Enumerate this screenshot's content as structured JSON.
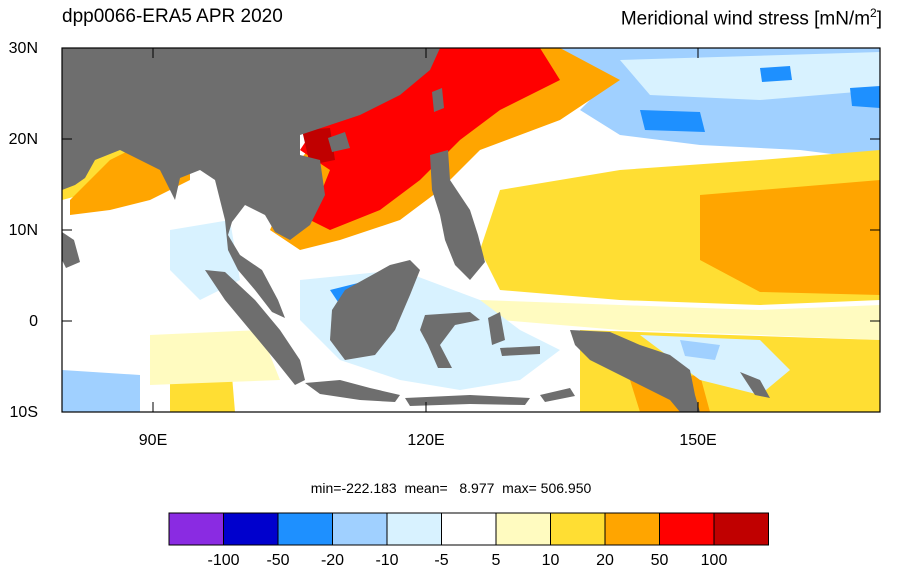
{
  "title_left": "dpp0066-ERA5  APR 2020",
  "title_right": "Meridional wind stress [mN/m",
  "title_right_sup": "2",
  "title_right_end": "]",
  "lat_labels": [
    "30N",
    "20N",
    "10N",
    "0",
    "10S"
  ],
  "lon_labels": [
    "90E",
    "120E",
    "150E"
  ],
  "stats": "min=-222.183  mean=   8.977  max= 506.950",
  "colorbar": {
    "colors": [
      "#8a2be2",
      "#0000cd",
      "#1e90ff",
      "#a0d0ff",
      "#d8f2ff",
      "#ffffff",
      "#fffbc0",
      "#ffde33",
      "#ffa500",
      "#ff0000",
      "#c00000"
    ],
    "labels": [
      "-100",
      "-50",
      "-20",
      "-10",
      "-5",
      "5",
      "10",
      "20",
      "50",
      "100"
    ]
  },
  "colors": {
    "land": "#6e6e6e",
    "ocean_default": "#ffffff"
  }
}
